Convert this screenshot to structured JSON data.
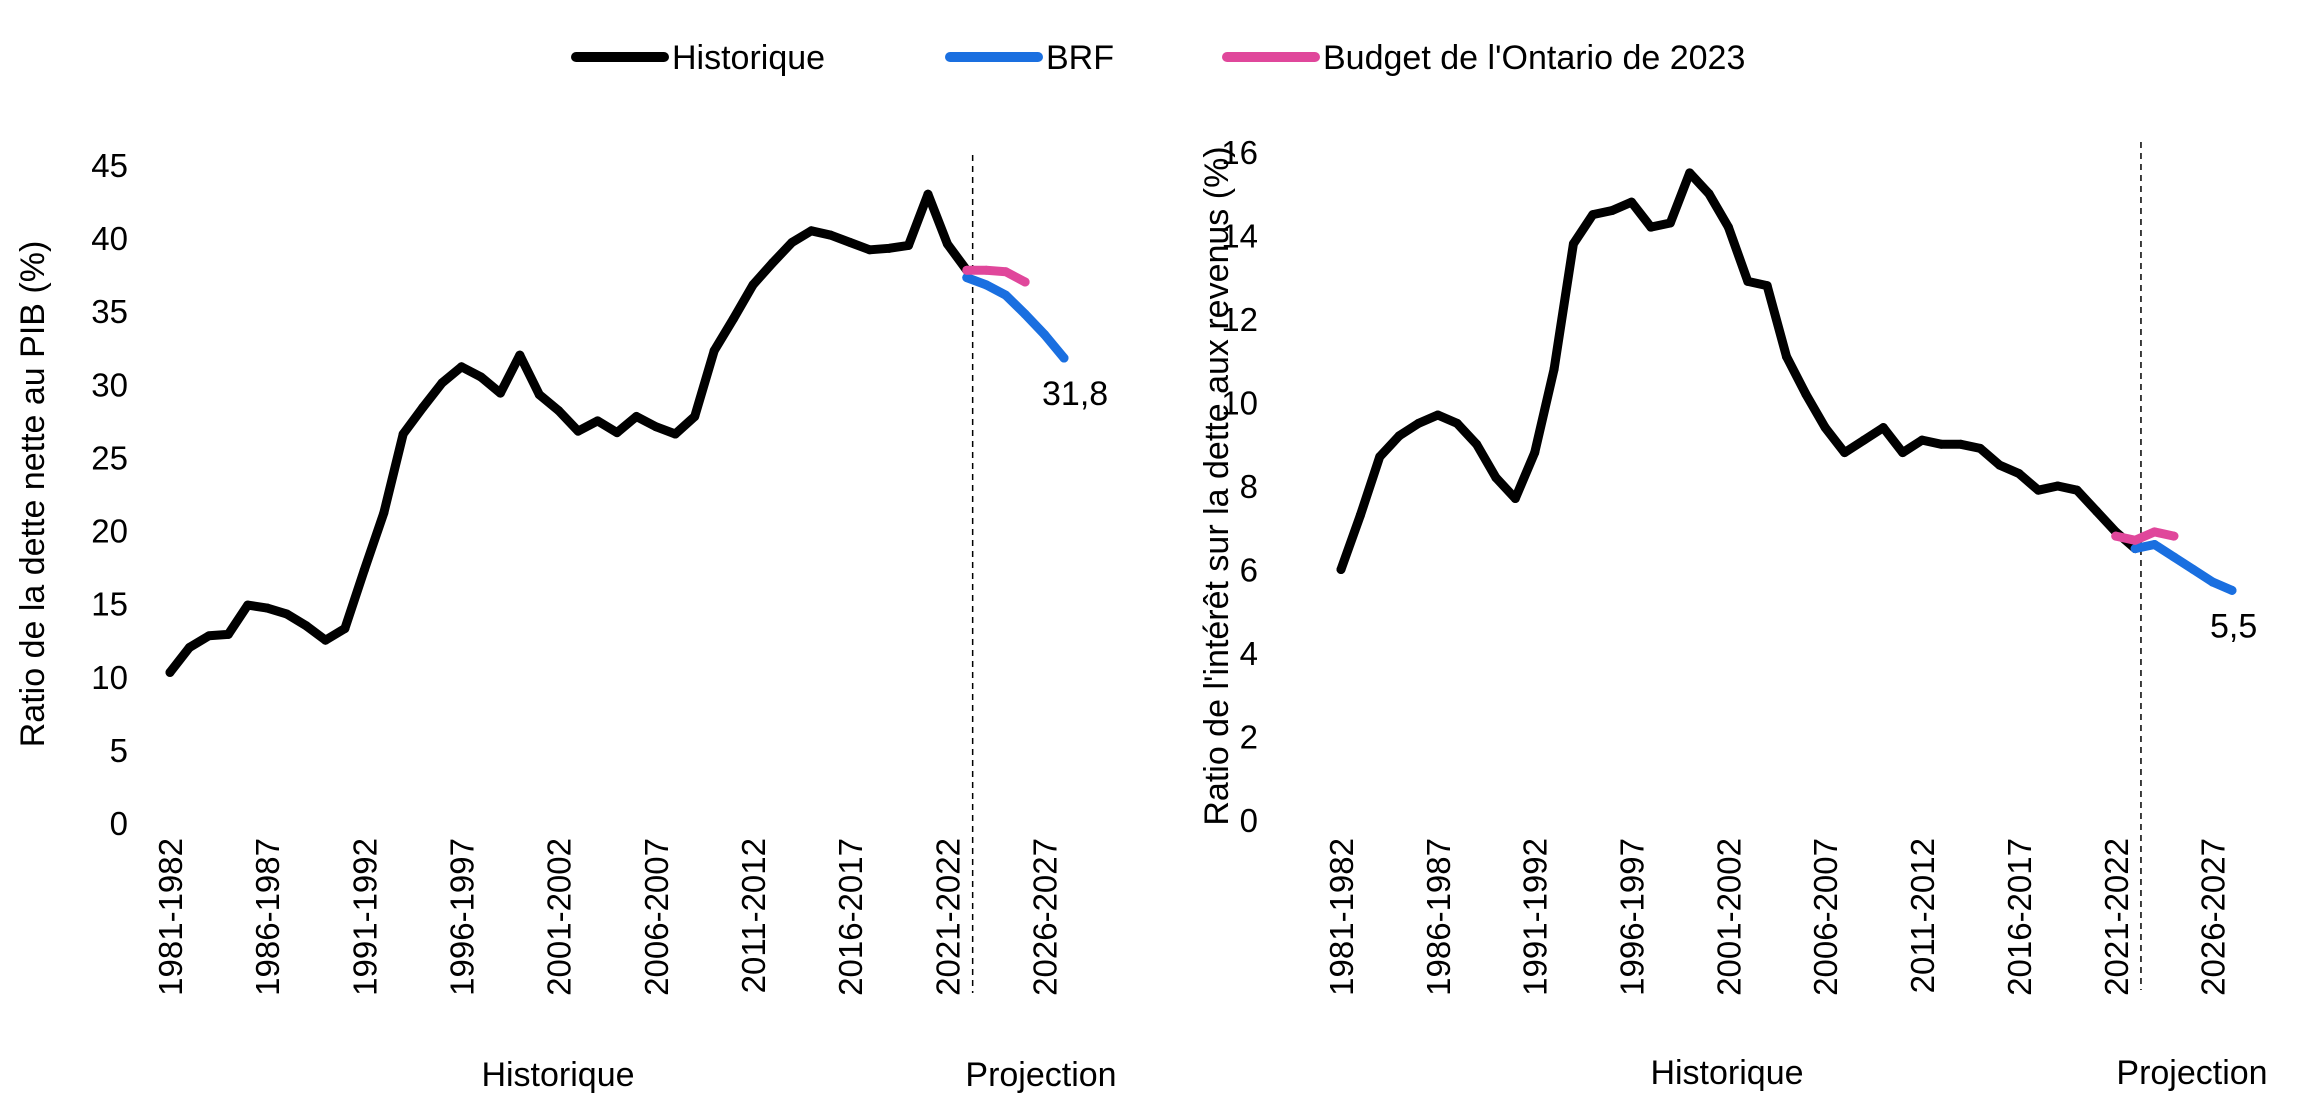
{
  "legend": {
    "position": "top-center",
    "items": [
      {
        "label": "Historique",
        "color": "#000000"
      },
      {
        "label": "BRF",
        "color": "#1a6fe0"
      },
      {
        "label": "Budget de l'Ontario de 2023",
        "color": "#e0479b"
      }
    ]
  },
  "chart_data": [
    {
      "type": "line",
      "title": "",
      "xlabel": "",
      "ylabel": "Ratio de la dette nette au PIB (%)",
      "ylim": [
        0,
        45
      ],
      "yticks": [
        0,
        5,
        10,
        15,
        20,
        25,
        30,
        35,
        40,
        45
      ],
      "grid": false,
      "x_tick_labels": [
        "1981-1982",
        "1986-1987",
        "1991-1992",
        "1996-1997",
        "2001-2002",
        "2006-2007",
        "2011-2012",
        "2016-2017",
        "2021-2022",
        "2026-2027"
      ],
      "x_tick_positions": [
        0,
        5,
        10,
        15,
        20,
        25,
        30,
        35,
        40,
        45
      ],
      "x_range": [
        0,
        46
      ],
      "projection_divider": 41.3,
      "region_labels": [
        "Historique",
        "Projection"
      ],
      "end_label": "31,8",
      "end_label_value": 31.8,
      "end_label_x": 46,
      "series": [
        {
          "name": "Historique",
          "color": "#000000",
          "x": [
            0,
            1,
            2,
            3,
            4,
            5,
            6,
            7,
            8,
            9,
            10,
            11,
            12,
            13,
            14,
            15,
            16,
            17,
            18,
            19,
            20,
            21,
            22,
            23,
            24,
            25,
            26,
            27,
            28,
            29,
            30,
            31,
            32,
            33,
            34,
            35,
            36,
            37,
            38,
            39,
            40,
            41
          ],
          "y": [
            10.3,
            12.0,
            12.8,
            12.9,
            14.9,
            14.7,
            14.3,
            13.5,
            12.5,
            13.3,
            17.3,
            21.2,
            26.6,
            28.4,
            30.1,
            31.2,
            30.5,
            29.4,
            32.0,
            29.3,
            28.2,
            26.8,
            27.5,
            26.7,
            27.8,
            27.1,
            26.6,
            27.8,
            32.3,
            34.5,
            36.8,
            38.3,
            39.7,
            40.5,
            40.2,
            39.7,
            39.2,
            39.3,
            39.5,
            43.0,
            39.6,
            37.8
          ]
        },
        {
          "name": "BRF",
          "color": "#1a6fe0",
          "x": [
            41,
            42,
            43,
            44,
            45,
            46
          ],
          "y": [
            37.3,
            36.8,
            36.1,
            34.8,
            33.4,
            31.8
          ]
        },
        {
          "name": "Budget de l'Ontario de 2023",
          "color": "#e0479b",
          "x": [
            41,
            42,
            43,
            44
          ],
          "y": [
            37.8,
            37.8,
            37.7,
            37.0
          ]
        }
      ]
    },
    {
      "type": "line",
      "title": "",
      "xlabel": "",
      "ylabel": "Ratio de l'intérêt sur la dette aux revenus (%)",
      "ylim": [
        0,
        16
      ],
      "yticks": [
        0,
        2,
        4,
        6,
        8,
        10,
        12,
        14,
        16
      ],
      "grid": false,
      "x_tick_labels": [
        "1981-1982",
        "1986-1987",
        "1991-1992",
        "1996-1997",
        "2001-2002",
        "2006-2007",
        "2011-2012",
        "2016-2017",
        "2021-2022",
        "2026-2027"
      ],
      "x_tick_positions": [
        0,
        5,
        10,
        15,
        20,
        25,
        30,
        35,
        40,
        45
      ],
      "x_range": [
        0,
        46
      ],
      "projection_divider": 41.3,
      "region_labels": [
        "Historique",
        "Projection"
      ],
      "end_label": "5,5",
      "end_label_value": 5.5,
      "end_label_x": 46,
      "series": [
        {
          "name": "Historique",
          "color": "#000000",
          "x": [
            0,
            1,
            2,
            3,
            4,
            5,
            6,
            7,
            8,
            9,
            10,
            11,
            12,
            13,
            14,
            15,
            16,
            17,
            18,
            19,
            20,
            21,
            22,
            23,
            24,
            25,
            26,
            27,
            28,
            29,
            30,
            31,
            32,
            33,
            34,
            35,
            36,
            37,
            38,
            39,
            40,
            41
          ],
          "y": [
            6.0,
            7.3,
            8.7,
            9.2,
            9.5,
            9.7,
            9.5,
            9.0,
            8.2,
            7.7,
            8.8,
            10.8,
            13.8,
            14.5,
            14.6,
            14.8,
            14.2,
            14.3,
            15.5,
            15.0,
            14.2,
            12.9,
            12.8,
            11.1,
            10.2,
            9.4,
            8.8,
            9.1,
            9.4,
            8.8,
            9.1,
            9.0,
            9.0,
            8.9,
            8.5,
            8.3,
            7.9,
            8.0,
            7.9,
            7.4,
            6.9,
            6.5
          ]
        },
        {
          "name": "BRF",
          "color": "#1a6fe0",
          "x": [
            41,
            42,
            43,
            44,
            45,
            46
          ],
          "y": [
            6.5,
            6.6,
            6.3,
            6.0,
            5.7,
            5.5
          ]
        },
        {
          "name": "Budget de l'Ontario de 2023",
          "color": "#e0479b",
          "x": [
            40,
            41,
            42,
            43
          ],
          "y": [
            6.8,
            6.7,
            6.9,
            6.8
          ]
        }
      ]
    }
  ]
}
